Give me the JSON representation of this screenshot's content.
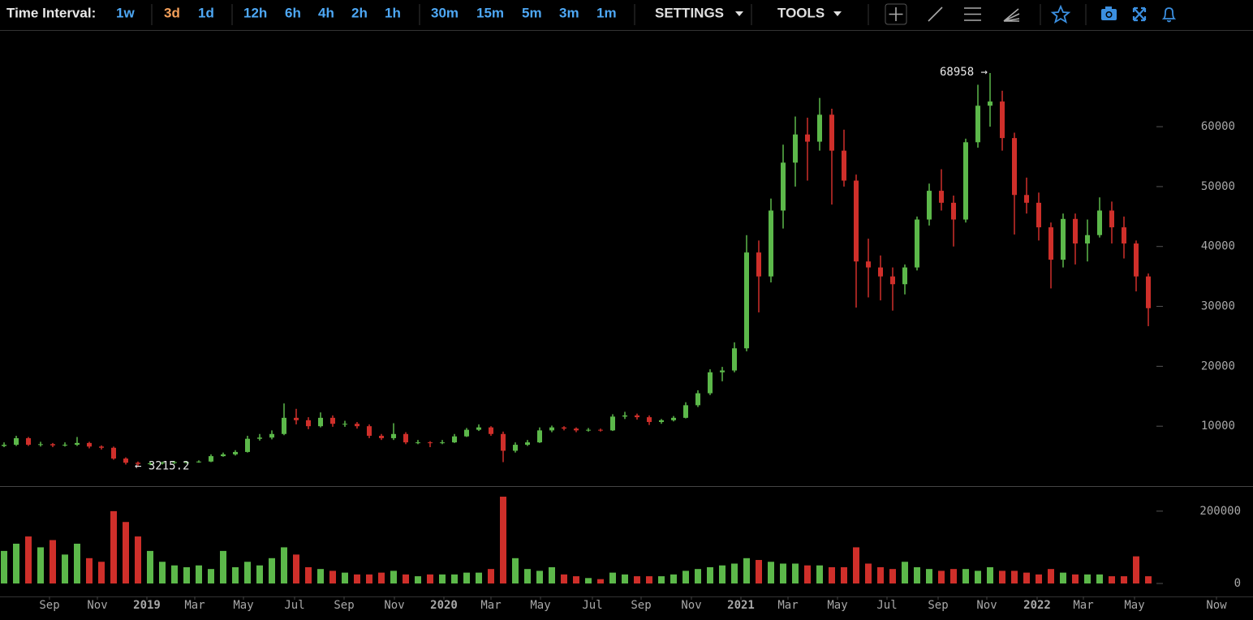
{
  "toolbar": {
    "label": "Time Interval:",
    "intervals": [
      "1w",
      "3d",
      "1d",
      "12h",
      "6h",
      "4h",
      "2h",
      "1h",
      "30m",
      "15m",
      "5m",
      "3m",
      "1m"
    ],
    "active": "3d",
    "menus": [
      "SETTINGS",
      "TOOLS"
    ]
  },
  "chart_data": {
    "type": "candlestick",
    "up_color": "#5cb84a",
    "down_color": "#cf2f2a",
    "xlim": [
      0,
      1544
    ],
    "xticks": [
      {
        "value": 61,
        "label": "Sep"
      },
      {
        "value": 120,
        "label": "Nov"
      },
      {
        "value": 181,
        "label": "2019"
      },
      {
        "value": 240,
        "label": "Mar"
      },
      {
        "value": 300,
        "label": "May"
      },
      {
        "value": 363,
        "label": "Jul"
      },
      {
        "value": 424,
        "label": "Sep"
      },
      {
        "value": 486,
        "label": "Nov"
      },
      {
        "value": 547,
        "label": "2020"
      },
      {
        "value": 605,
        "label": "Mar"
      },
      {
        "value": 666,
        "label": "May"
      },
      {
        "value": 730,
        "label": "Jul"
      },
      {
        "value": 790,
        "label": "Sep"
      },
      {
        "value": 852,
        "label": "Nov"
      },
      {
        "value": 913,
        "label": "2021"
      },
      {
        "value": 971,
        "label": "Mar"
      },
      {
        "value": 1032,
        "label": "May"
      },
      {
        "value": 1093,
        "label": "Jul"
      },
      {
        "value": 1156,
        "label": "Sep"
      },
      {
        "value": 1216,
        "label": "Nov"
      },
      {
        "value": 1278,
        "label": "2022"
      },
      {
        "value": 1335,
        "label": "Mar"
      },
      {
        "value": 1398,
        "label": "May"
      },
      {
        "value": 1499,
        "label": "Now"
      }
    ],
    "ylim": [
      0,
      76000
    ],
    "yticks": [
      10000,
      20000,
      30000,
      40000,
      50000,
      60000
    ],
    "y2lim": [
      0,
      267000
    ],
    "y2ticks": [
      0,
      200000
    ],
    "x": [
      5,
      20,
      35,
      50,
      65,
      80,
      95,
      110,
      125,
      140,
      155,
      170,
      185,
      200,
      215,
      230,
      245,
      260,
      275,
      290,
      305,
      320,
      335,
      350,
      365,
      380,
      395,
      410,
      425,
      440,
      455,
      470,
      485,
      500,
      515,
      530,
      545,
      560,
      575,
      590,
      605,
      620,
      635,
      650,
      665,
      680,
      695,
      710,
      725,
      740,
      755,
      770,
      785,
      800,
      815,
      830,
      845,
      860,
      875,
      890,
      905,
      920,
      935,
      950,
      965,
      980,
      995,
      1010,
      1025,
      1040,
      1055,
      1070,
      1085,
      1100,
      1115,
      1130,
      1145,
      1160,
      1175,
      1190,
      1205,
      1220,
      1235,
      1250,
      1265,
      1280,
      1295,
      1310,
      1325,
      1340,
      1355,
      1370,
      1385,
      1400,
      1415
    ],
    "open": [
      6700,
      6900,
      8000,
      6900,
      7000,
      6800,
      6900,
      7200,
      6600,
      6400,
      4600,
      3900,
      3700,
      3800,
      3900,
      4000,
      4000,
      4100,
      5000,
      5300,
      5700,
      7900,
      8100,
      8700,
      11400,
      11000,
      10000,
      11400,
      10400,
      10400,
      10000,
      8400,
      8000,
      8700,
      7300,
      7300,
      7200,
      7300,
      8300,
      9400,
      9800,
      8700,
      5900,
      6900,
      7300,
      9300,
      9800,
      9600,
      9300,
      9400,
      9300,
      11600,
      11800,
      11500,
      10700,
      11000,
      11400,
      13500,
      15500,
      19000,
      19300,
      23000,
      39000,
      35000,
      46000,
      54000,
      58700,
      57500,
      62000,
      56000,
      51000,
      37500,
      36500,
      35000,
      33700,
      36500,
      44500,
      49300,
      47300,
      44500,
      57400,
      63500,
      64200,
      58100,
      48600,
      47300,
      43200,
      37800,
      44600,
      40500,
      41900,
      46000,
      43200,
      40500,
      35000
    ],
    "high": [
      7300,
      8400,
      8200,
      7400,
      7200,
      7300,
      8200,
      7400,
      6800,
      6600,
      4800,
      4100,
      4100,
      4100,
      4200,
      4200,
      4300,
      5300,
      5600,
      6000,
      8400,
      8700,
      9300,
      13800,
      12900,
      11500,
      12300,
      11800,
      10900,
      10700,
      10300,
      8700,
      10500,
      9000,
      7700,
      7500,
      7700,
      8700,
      9700,
      10300,
      10000,
      9100,
      7300,
      7700,
      9800,
      10100,
      10000,
      9800,
      9700,
      9600,
      12000,
      12400,
      12100,
      11800,
      11200,
      11700,
      14000,
      16000,
      19500,
      19900,
      24000,
      41900,
      41000,
      48000,
      57000,
      61700,
      61500,
      64800,
      63000,
      59500,
      52000,
      41300,
      38500,
      36500,
      37000,
      45000,
      50500,
      52900,
      48500,
      58000,
      67000,
      68958,
      66000,
      59000,
      51500,
      49000,
      44000,
      45500,
      45500,
      44500,
      48200,
      47500,
      45000,
      41000,
      35500
    ],
    "low": [
      6500,
      6700,
      6700,
      6600,
      6500,
      6600,
      6700,
      6300,
      6100,
      4400,
      3600,
      3215.2,
      3500,
      3600,
      3700,
      3800,
      3900,
      4000,
      4900,
      5100,
      5600,
      7600,
      7800,
      8500,
      10300,
      9500,
      9800,
      9900,
      9900,
      9600,
      8000,
      7700,
      7700,
      7000,
      7000,
      6500,
      7000,
      7200,
      8200,
      9200,
      8400,
      4000,
      5600,
      6700,
      7200,
      9000,
      9300,
      9000,
      9100,
      9100,
      9200,
      11200,
      11100,
      10200,
      10400,
      10800,
      11300,
      13200,
      15200,
      17500,
      19000,
      22500,
      29000,
      34000,
      43000,
      50000,
      51000,
      56000,
      47000,
      50000,
      29800,
      31500,
      31000,
      29300,
      32000,
      36000,
      43500,
      46000,
      40000,
      44000,
      56500,
      60000,
      56000,
      42000,
      45500,
      41000,
      33000,
      36500,
      37000,
      37500,
      41500,
      40500,
      38000,
      32500,
      26700
    ],
    "close": [
      6900,
      8000,
      6900,
      7000,
      6800,
      6900,
      7200,
      6600,
      6400,
      4600,
      3900,
      3700,
      3800,
      3900,
      4000,
      4000,
      4100,
      5000,
      5300,
      5700,
      7900,
      8100,
      8700,
      11400,
      11000,
      10000,
      11400,
      10400,
      10400,
      10000,
      8400,
      8000,
      8700,
      7300,
      7300,
      7200,
      7300,
      8300,
      9400,
      9800,
      8700,
      5900,
      6900,
      7300,
      9300,
      9800,
      9600,
      9300,
      9400,
      9300,
      11600,
      11800,
      11500,
      10700,
      11000,
      11400,
      13500,
      15500,
      19000,
      19300,
      23000,
      39000,
      35000,
      46000,
      54000,
      58700,
      57500,
      62000,
      56000,
      51000,
      37500,
      36500,
      35000,
      33700,
      36500,
      44500,
      49300,
      47300,
      44500,
      57400,
      63500,
      64200,
      58100,
      48600,
      47300,
      43200,
      37800,
      44600,
      40500,
      41900,
      46000,
      43200,
      40500,
      35000,
      29700
    ],
    "volume": [
      90000,
      110000,
      130000,
      100000,
      120000,
      80000,
      110000,
      70000,
      60000,
      200000,
      170000,
      130000,
      90000,
      60000,
      50000,
      45000,
      50000,
      40000,
      90000,
      45000,
      60000,
      50000,
      70000,
      100000,
      80000,
      45000,
      40000,
      35000,
      30000,
      25000,
      25000,
      30000,
      35000,
      25000,
      20000,
      25000,
      25000,
      25000,
      30000,
      30000,
      40000,
      240000,
      70000,
      40000,
      35000,
      45000,
      25000,
      20000,
      15000,
      12000,
      30000,
      25000,
      20000,
      20000,
      20000,
      25000,
      35000,
      40000,
      45000,
      50000,
      55000,
      70000,
      65000,
      60000,
      55000,
      55000,
      50000,
      50000,
      45000,
      45000,
      100000,
      55000,
      45000,
      40000,
      60000,
      45000,
      40000,
      35000,
      40000,
      40000,
      35000,
      45000,
      35000,
      35000,
      30000,
      25000,
      40000,
      30000,
      25000,
      25000,
      25000,
      20000,
      20000,
      75000,
      20000
    ],
    "annotations": [
      {
        "value": 68958,
        "label": "68958 →"
      },
      {
        "value": 3215.2,
        "label": "← 3215.2"
      }
    ]
  }
}
